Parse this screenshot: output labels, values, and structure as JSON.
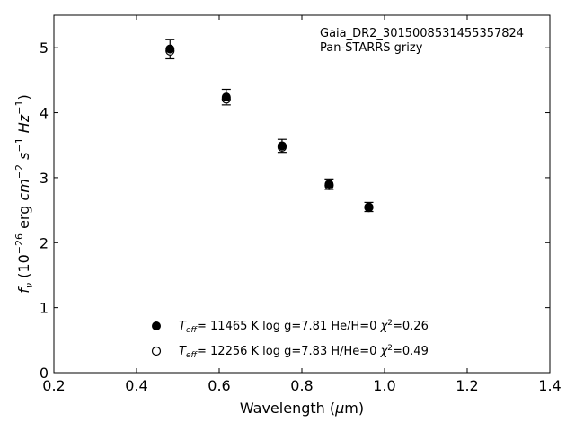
{
  "chart_data": {
    "type": "scatter",
    "title": "",
    "annotation": [
      "Gaia_DR2_3015008531455357824",
      "Pan-STARRS grizy"
    ],
    "xlabel": "Wavelength (μm)",
    "ylabel": "f_ν (10^-26 erg cm^-2 s^-1 Hz^-1)",
    "xlim": [
      0.2,
      1.4
    ],
    "ylim": [
      0,
      5.5
    ],
    "xticks": [
      "0.2",
      "0.4",
      "0.6",
      "0.8",
      "1.0",
      "1.2",
      "1.4"
    ],
    "yticks": [
      "0",
      "1",
      "2",
      "3",
      "4",
      "5"
    ],
    "grid": false,
    "legend_position": "lower-center",
    "series": [
      {
        "name": "T_eff= 11465 K  log g=7.81  He/H=0  χ²=0.26",
        "marker": "filled-circle",
        "color": "#000000",
        "x": [
          0.481,
          0.617,
          0.752,
          0.866,
          0.962
        ],
        "y": [
          4.98,
          4.24,
          3.49,
          2.9,
          2.55
        ],
        "yerr": [
          0.15,
          0.12,
          0.1,
          0.08,
          0.07
        ]
      },
      {
        "name": "T_eff= 12256 K  log g=7.83  H/He=0  χ²=0.49",
        "marker": "open-circle",
        "color": "#000000",
        "x": [
          0.481,
          0.617,
          0.752,
          0.866,
          0.962
        ],
        "y": [
          4.95,
          4.21,
          3.47,
          2.88,
          2.54
        ]
      }
    ]
  }
}
